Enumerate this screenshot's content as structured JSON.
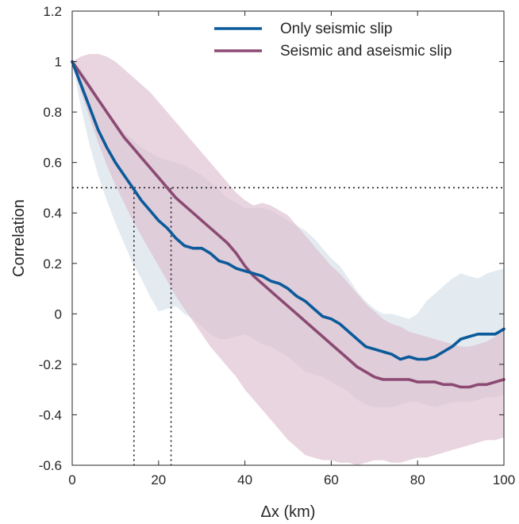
{
  "chart_data": {
    "type": "line",
    "xlabel": "Δx (km)",
    "ylabel": "Correlation",
    "xlim": [
      0,
      100
    ],
    "ylim": [
      -0.6,
      1.2
    ],
    "xticks": [
      0,
      20,
      40,
      60,
      80,
      100
    ],
    "yticks": [
      -0.6,
      -0.4,
      -0.2,
      0,
      0.2,
      0.4,
      0.6,
      0.8,
      1,
      1.2
    ],
    "xtick_labels": [
      "0",
      "20",
      "40",
      "60",
      "80",
      "100"
    ],
    "ytick_labels": [
      "-0.6",
      "-0.4",
      "-0.2",
      "0",
      "0.2",
      "0.4",
      "0.6",
      "0.8",
      "1",
      "1.2"
    ],
    "legend_position": "top-right",
    "grid": false,
    "reference_lines": {
      "y_threshold": 0.5,
      "x_marks": [
        14.3,
        22.9
      ]
    },
    "series": [
      {
        "name": "Only seismic slip",
        "color": "#0b5a9a",
        "band_color": "#dde6ec",
        "x": [
          0,
          2,
          4,
          6,
          8,
          10,
          12,
          14,
          16,
          18,
          20,
          22,
          24,
          26,
          28,
          30,
          32,
          34,
          36,
          38,
          40,
          42,
          44,
          46,
          48,
          50,
          52,
          54,
          56,
          58,
          60,
          62,
          64,
          66,
          68,
          70,
          72,
          74,
          76,
          78,
          80,
          82,
          84,
          86,
          88,
          90,
          92,
          94,
          96,
          98,
          100
        ],
        "values": [
          1.0,
          0.91,
          0.82,
          0.73,
          0.66,
          0.6,
          0.55,
          0.5,
          0.45,
          0.41,
          0.37,
          0.34,
          0.3,
          0.27,
          0.26,
          0.26,
          0.24,
          0.21,
          0.2,
          0.18,
          0.17,
          0.16,
          0.15,
          0.13,
          0.12,
          0.1,
          0.07,
          0.05,
          0.02,
          -0.01,
          -0.02,
          -0.04,
          -0.07,
          -0.1,
          -0.13,
          -0.14,
          -0.15,
          -0.16,
          -0.18,
          -0.17,
          -0.18,
          -0.18,
          -0.17,
          -0.15,
          -0.13,
          -0.1,
          -0.09,
          -0.08,
          -0.08,
          -0.08,
          -0.06
        ],
        "band_upper": [
          1.0,
          0.97,
          0.92,
          0.86,
          0.81,
          0.76,
          0.72,
          0.69,
          0.66,
          0.64,
          0.62,
          0.61,
          0.6,
          0.59,
          0.57,
          0.55,
          0.52,
          0.49,
          0.46,
          0.44,
          0.42,
          0.42,
          0.42,
          0.41,
          0.39,
          0.37,
          0.35,
          0.33,
          0.3,
          0.26,
          0.22,
          0.19,
          0.14,
          0.09,
          0.05,
          0.02,
          0.0,
          0.0,
          -0.01,
          -0.02,
          0.0,
          0.05,
          0.08,
          0.11,
          0.14,
          0.16,
          0.15,
          0.14,
          0.16,
          0.17,
          0.18
        ],
        "band_lower": [
          1.0,
          0.82,
          0.67,
          0.55,
          0.45,
          0.36,
          0.28,
          0.2,
          0.14,
          0.07,
          0.01,
          0.02,
          0.03,
          0.0,
          -0.02,
          -0.05,
          -0.08,
          -0.1,
          -0.1,
          -0.09,
          -0.08,
          -0.1,
          -0.12,
          -0.13,
          -0.15,
          -0.17,
          -0.2,
          -0.23,
          -0.24,
          -0.25,
          -0.27,
          -0.29,
          -0.31,
          -0.34,
          -0.36,
          -0.37,
          -0.37,
          -0.37,
          -0.36,
          -0.35,
          -0.35,
          -0.36,
          -0.37,
          -0.36,
          -0.35,
          -0.35,
          -0.35,
          -0.34,
          -0.33,
          -0.33,
          -0.32
        ]
      },
      {
        "name": "Seismic and aseismic slip",
        "color": "#8c4a73",
        "band_color": "#dbbccb",
        "x": [
          0,
          2,
          4,
          6,
          8,
          10,
          12,
          14,
          16,
          18,
          20,
          22,
          24,
          26,
          28,
          30,
          32,
          34,
          36,
          38,
          40,
          42,
          44,
          46,
          48,
          50,
          52,
          54,
          56,
          58,
          60,
          62,
          64,
          66,
          68,
          70,
          72,
          74,
          76,
          78,
          80,
          82,
          84,
          86,
          88,
          90,
          92,
          94,
          96,
          98,
          100
        ],
        "values": [
          1.0,
          0.95,
          0.9,
          0.85,
          0.8,
          0.75,
          0.7,
          0.66,
          0.62,
          0.58,
          0.54,
          0.5,
          0.46,
          0.43,
          0.4,
          0.37,
          0.34,
          0.31,
          0.28,
          0.24,
          0.19,
          0.15,
          0.12,
          0.09,
          0.06,
          0.03,
          0.0,
          -0.03,
          -0.06,
          -0.09,
          -0.12,
          -0.15,
          -0.18,
          -0.21,
          -0.23,
          -0.25,
          -0.26,
          -0.26,
          -0.26,
          -0.26,
          -0.27,
          -0.27,
          -0.27,
          -0.28,
          -0.28,
          -0.29,
          -0.29,
          -0.28,
          -0.28,
          -0.27,
          -0.26
        ],
        "band_upper": [
          1.0,
          1.02,
          1.03,
          1.03,
          1.02,
          1.0,
          0.97,
          0.94,
          0.91,
          0.88,
          0.84,
          0.8,
          0.76,
          0.72,
          0.68,
          0.64,
          0.6,
          0.56,
          0.52,
          0.48,
          0.45,
          0.43,
          0.44,
          0.43,
          0.41,
          0.39,
          0.35,
          0.31,
          0.27,
          0.23,
          0.19,
          0.16,
          0.12,
          0.08,
          0.04,
          0.01,
          -0.02,
          -0.04,
          -0.05,
          -0.07,
          -0.08,
          -0.09,
          -0.1,
          -0.11,
          -0.12,
          -0.13,
          -0.13,
          -0.12,
          -0.11,
          -0.09,
          -0.05
        ],
        "band_lower": [
          1.0,
          0.88,
          0.78,
          0.68,
          0.59,
          0.51,
          0.44,
          0.37,
          0.31,
          0.25,
          0.19,
          0.13,
          0.07,
          0.02,
          -0.03,
          -0.08,
          -0.13,
          -0.17,
          -0.21,
          -0.25,
          -0.3,
          -0.34,
          -0.38,
          -0.42,
          -0.46,
          -0.5,
          -0.53,
          -0.56,
          -0.57,
          -0.58,
          -0.58,
          -0.59,
          -0.59,
          -0.6,
          -0.59,
          -0.58,
          -0.58,
          -0.59,
          -0.59,
          -0.58,
          -0.57,
          -0.57,
          -0.56,
          -0.55,
          -0.54,
          -0.53,
          -0.52,
          -0.51,
          -0.5,
          -0.5,
          -0.49
        ]
      }
    ]
  }
}
